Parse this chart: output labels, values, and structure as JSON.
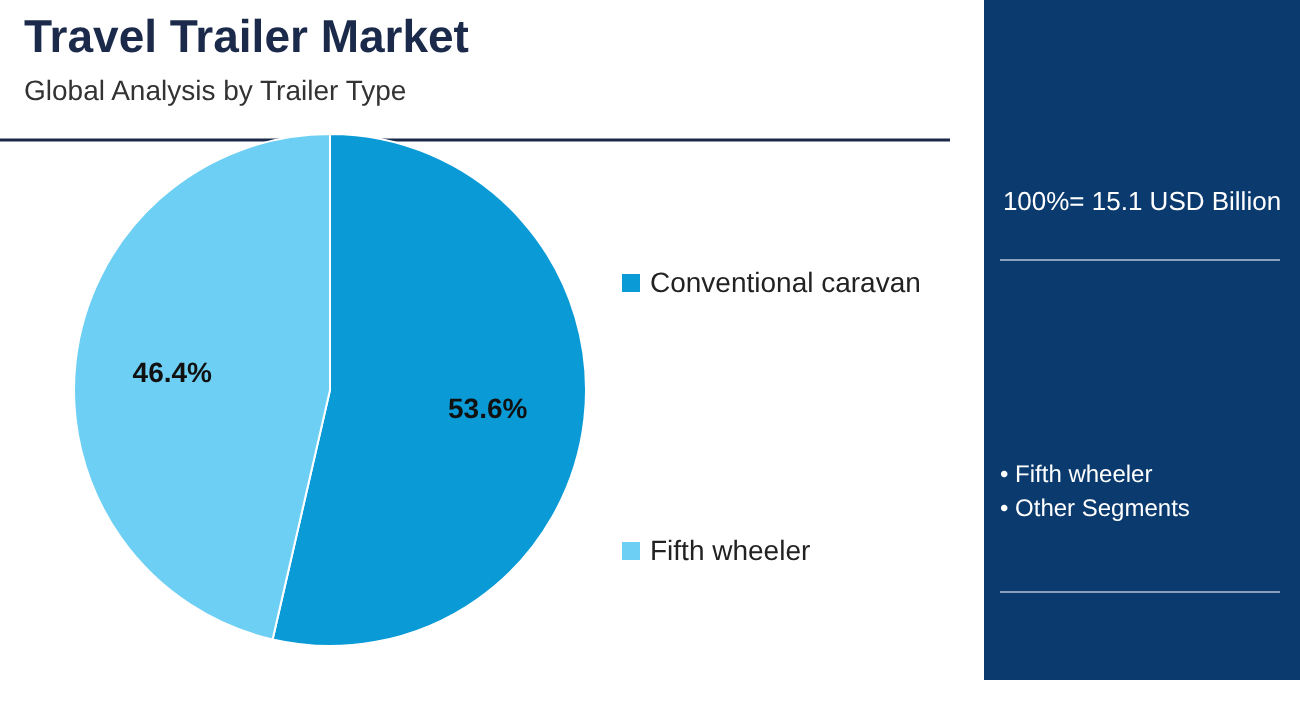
{
  "chart_data": {
    "type": "pie",
    "title": "Travel Trailer Market",
    "subtitle": "Global Analysis by Trailer Type",
    "categories": [
      "Conventional caravan",
      "Fifth wheeler"
    ],
    "values": [
      53.6,
      46.4
    ],
    "colors": [
      "#0a9ad6",
      "#6dcff3"
    ],
    "value_labels": [
      "53.6%",
      "46.4%"
    ],
    "legend": "right",
    "annotations": [
      "100%= 15.1 USD Billion",
      "• Fifth wheeler",
      "• Other Segments"
    ]
  }
}
